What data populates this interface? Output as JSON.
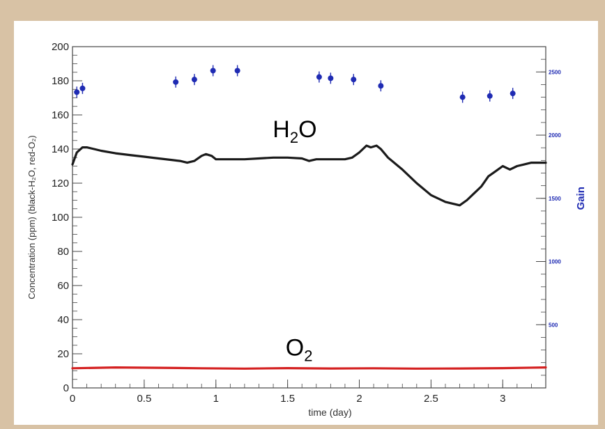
{
  "chart_data": {
    "type": "line",
    "xlabel": "time (day)",
    "ylabel": "Concentration  (ppm) (black-H₂O, red-O₂)",
    "y2label": "Gain",
    "xlim": [
      0,
      3.3
    ],
    "ylim": [
      0,
      200
    ],
    "y2lim": [
      0,
      2700
    ],
    "x_ticks": [
      0,
      0.5,
      1,
      1.5,
      2,
      2.5,
      3
    ],
    "x_tick_labels": [
      "0",
      "0.5",
      "1",
      "1.5",
      "2",
      "2.5",
      "3"
    ],
    "y_ticks": [
      0,
      20,
      40,
      60,
      80,
      100,
      120,
      140,
      160,
      180,
      200
    ],
    "y_tick_labels": [
      "0",
      "20",
      "40",
      "60",
      "80",
      "100",
      "120",
      "140",
      "160",
      "180",
      "200"
    ],
    "y2_ticks": [
      500,
      1000,
      1500,
      2000,
      2500
    ],
    "y2_tick_labels": [
      "500",
      "1000",
      "1500",
      "2000",
      "2500"
    ],
    "annotations": [
      {
        "text_main": "H",
        "text_sub": "2",
        "text_tail": "O",
        "x": 1.55,
        "y": 147
      },
      {
        "text_main": "O",
        "text_sub": "2",
        "text_tail": "",
        "x": 1.58,
        "y": 19
      }
    ],
    "series": [
      {
        "axis": "left",
        "style": "line",
        "color": "#1a1a1a",
        "x": [
          0,
          0.03,
          0.07,
          0.1,
          0.15,
          0.2,
          0.3,
          0.4,
          0.5,
          0.6,
          0.7,
          0.75,
          0.8,
          0.85,
          0.9,
          0.93,
          0.97,
          1.0,
          1.1,
          1.2,
          1.3,
          1.4,
          1.5,
          1.6,
          1.65,
          1.7,
          1.8,
          1.9,
          1.95,
          2.0,
          2.05,
          2.08,
          2.12,
          2.15,
          2.2,
          2.3,
          2.4,
          2.5,
          2.6,
          2.7,
          2.75,
          2.8,
          2.85,
          2.9,
          2.95,
          3.0,
          3.05,
          3.1,
          3.15,
          3.2,
          3.3
        ],
        "values": [
          131,
          138,
          141,
          141,
          140,
          139,
          137.5,
          136.5,
          135.5,
          134.5,
          133.5,
          133,
          132,
          133,
          136,
          137,
          136,
          134,
          134,
          134,
          134.5,
          135,
          135,
          134.5,
          133,
          134,
          134,
          134,
          135,
          138,
          142,
          141,
          142,
          140,
          135,
          128,
          120,
          113,
          109,
          107,
          110,
          114,
          118,
          124,
          127,
          130,
          128,
          130,
          131,
          132,
          132
        ]
      },
      {
        "axis": "left",
        "style": "line",
        "color": "#d42020",
        "x": [
          0,
          0.3,
          0.6,
          0.9,
          1.2,
          1.5,
          1.8,
          2.1,
          2.4,
          2.7,
          3.0,
          3.3
        ],
        "values": [
          11.5,
          12,
          11.8,
          11.5,
          11.3,
          11.6,
          11.4,
          11.5,
          11.3,
          11.4,
          11.6,
          12
        ]
      },
      {
        "axis": "right",
        "style": "points",
        "color": "#1f2bb3",
        "x": [
          0.03,
          0.07,
          0.72,
          0.85,
          0.98,
          1.15,
          1.72,
          1.8,
          1.96,
          2.15,
          2.72,
          2.91,
          3.07
        ],
        "values": [
          2340,
          2370,
          2420,
          2440,
          2510,
          2510,
          2460,
          2450,
          2440,
          2390,
          2300,
          2310,
          2330
        ]
      }
    ]
  }
}
